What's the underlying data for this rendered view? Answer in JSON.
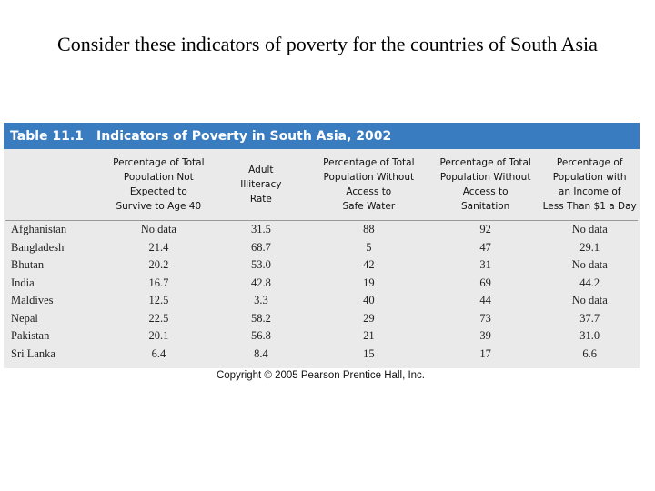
{
  "heading": "Consider these indicators of poverty for the countries of South Asia",
  "table": {
    "number": "Table 11.1",
    "title": "Indicators of Poverty in South Asia, 2002",
    "headers": [
      "",
      "Percentage of Total Population Not Expected to Survive to Age 40",
      "Adult Illiteracy Rate",
      "Percentage of Total Population Without Access to Safe Water",
      "Percentage of Total Population Without Access to Sanitation",
      "Percentage of Population with an Income of Less Than $1 a Day"
    ],
    "header_lines": [
      [],
      [
        "Percentage of Total",
        "Population Not",
        "Expected to",
        "Survive to Age 40"
      ],
      [
        "Adult",
        "Illiteracy",
        "Rate"
      ],
      [
        "Percentage of Total",
        "Population Without",
        "Access to",
        "Safe Water"
      ],
      [
        "Percentage of Total",
        "Population Without",
        "Access to",
        "Sanitation"
      ],
      [
        "Percentage of",
        "Population with",
        "an Income of",
        "Less Than $1 a Day"
      ]
    ],
    "rows": [
      [
        "Afghanistan",
        "No data",
        "31.5",
        "88",
        "92",
        "No data"
      ],
      [
        "Bangladesh",
        "21.4",
        "68.7",
        "5",
        "47",
        "29.1"
      ],
      [
        "Bhutan",
        "20.2",
        "53.0",
        "42",
        "31",
        "No data"
      ],
      [
        "India",
        "16.7",
        "42.8",
        "19",
        "69",
        "44.2"
      ],
      [
        "Maldives",
        "12.5",
        "3.3",
        "40",
        "44",
        "No data"
      ],
      [
        "Nepal",
        "22.5",
        "58.2",
        "29",
        "73",
        "37.7"
      ],
      [
        "Pakistan",
        "20.1",
        "56.8",
        "21",
        "39",
        "31.0"
      ],
      [
        "Sri Lanka",
        "6.4",
        "8.4",
        "15",
        "17",
        "6.6"
      ]
    ]
  },
  "copyright": "Copyright © 2005 Pearson Prentice Hall, Inc.",
  "colors": {
    "title_bar": "#3a7cc0",
    "table_bg": "#eaeaea"
  }
}
